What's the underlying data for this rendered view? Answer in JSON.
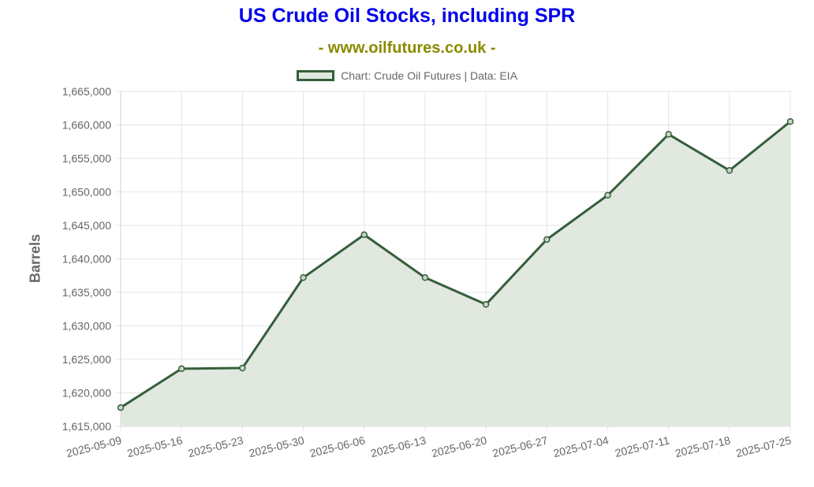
{
  "chart_data": {
    "type": "area",
    "title": "US Crude Oil Stocks, including SPR",
    "subtitle": "- www.oilfutures.co.uk -",
    "legend": "Chart: Crude Oil Futures | Data: EIA",
    "legend_position": "top",
    "ylabel": "Barrels",
    "xlabel": "",
    "grid": true,
    "ylim": [
      1615000,
      1665000
    ],
    "yticks": [
      1615000,
      1620000,
      1625000,
      1630000,
      1635000,
      1640000,
      1645000,
      1650000,
      1655000,
      1660000,
      1665000
    ],
    "ytick_labels": [
      "1,615,000",
      "1,620,000",
      "1,625,000",
      "1,630,000",
      "1,635,000",
      "1,640,000",
      "1,645,000",
      "1,650,000",
      "1,655,000",
      "1,660,000",
      "1,665,000"
    ],
    "categories": [
      "2025-05-09",
      "2025-05-16",
      "2025-05-23",
      "2025-05-30",
      "2025-06-06",
      "2025-06-13",
      "2025-06-20",
      "2025-06-27",
      "2025-07-04",
      "2025-07-11",
      "2025-07-18",
      "2025-07-25"
    ],
    "series": [
      {
        "values": [
          1617800,
          1623600,
          1623700,
          1637200,
          1643600,
          1637200,
          1633200,
          1642900,
          1649500,
          1658600,
          1653200,
          1660500
        ]
      }
    ],
    "colors": {
      "line": "#355e3b",
      "fill": "#e1e8df",
      "title": "#0000ee",
      "subtitle": "#8a8a00",
      "grid": "#e5e5e5"
    }
  }
}
